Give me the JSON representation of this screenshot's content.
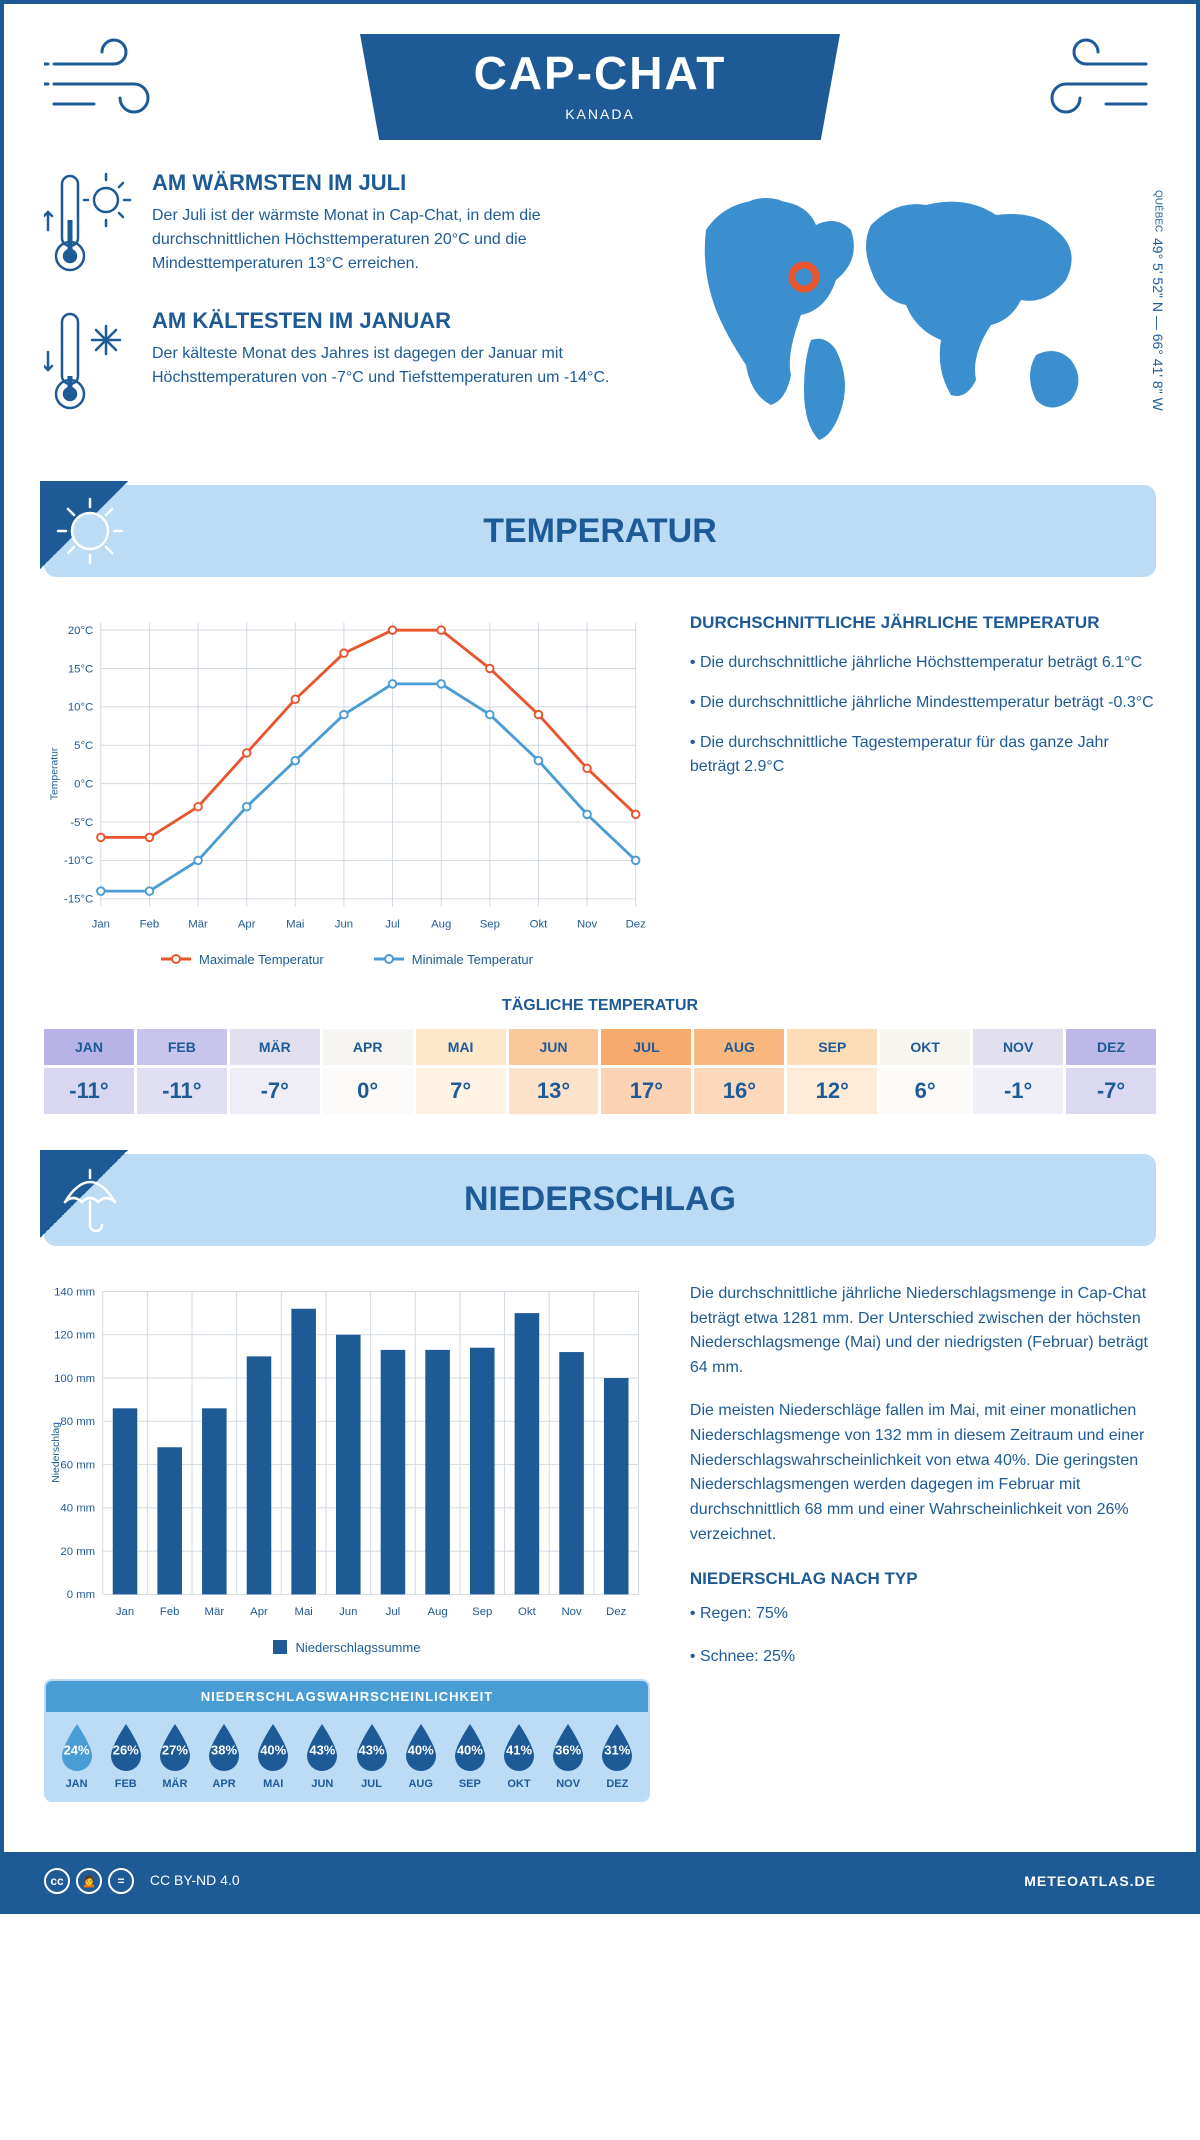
{
  "header": {
    "title": "CAP-CHAT",
    "subtitle": "KANADA"
  },
  "location": {
    "province": "QUÉBEC",
    "coords": "49° 5' 52\" N — 66° 41' 8\" W",
    "marker": {
      "cx_pct": 29,
      "cy_pct": 38
    }
  },
  "facts": {
    "warm": {
      "title": "AM WÄRMSTEN IM JULI",
      "text": "Der Juli ist der wärmste Monat in Cap-Chat, in dem die durchschnittlichen Höchsttemperaturen 20°C und die Mindesttemperaturen 13°C erreichen."
    },
    "cold": {
      "title": "AM KÄLTESTEN IM JANUAR",
      "text": "Der kälteste Monat des Jahres ist dagegen der Januar mit Höchsttemperaturen von -7°C und Tiefsttemperaturen um -14°C."
    }
  },
  "section_temperature": "TEMPERATUR",
  "section_precipitation": "NIEDERSCHLAG",
  "temperature_chart": {
    "type": "line",
    "months": [
      "Jan",
      "Feb",
      "Mär",
      "Apr",
      "Mai",
      "Jun",
      "Jul",
      "Aug",
      "Sep",
      "Okt",
      "Nov",
      "Dez"
    ],
    "series_max": {
      "label": "Maximale Temperatur",
      "color": "#e8542c",
      "values": [
        -7,
        -7,
        -3,
        4,
        11,
        17,
        20,
        20,
        15,
        9,
        2,
        -4
      ]
    },
    "series_min": {
      "label": "Minimale Temperatur",
      "color": "#4a9cd4",
      "values": [
        -14,
        -14,
        -10,
        -3,
        3,
        9,
        13,
        13,
        9,
        3,
        -4,
        -10
      ]
    },
    "y_ticks": [
      -15,
      -10,
      -5,
      0,
      5,
      10,
      15,
      20
    ],
    "ylim": [
      -16,
      21
    ],
    "ylabel": "Temperatur",
    "line_width": 3,
    "marker_radius": 4,
    "grid_color": "#d0d8e0"
  },
  "temperature_text": {
    "title": "DURCHSCHNITTLICHE JÄHRLICHE TEMPERATUR",
    "lines": [
      "• Die durchschnittliche jährliche Höchsttemperatur beträgt 6.1°C",
      "• Die durchschnittliche jährliche Mindesttemperatur beträgt -0.3°C",
      "• Die durchschnittliche Tagestemperatur für das ganze Jahr beträgt 2.9°C"
    ]
  },
  "daily_temp": {
    "title": "TÄGLICHE TEMPERATUR",
    "months": [
      "JAN",
      "FEB",
      "MÄR",
      "APR",
      "MAI",
      "JUN",
      "JUL",
      "AUG",
      "SEP",
      "OKT",
      "NOV",
      "DEZ"
    ],
    "values": [
      "-11°",
      "-11°",
      "-7°",
      "0°",
      "7°",
      "13°",
      "17°",
      "16°",
      "12°",
      "6°",
      "-1°",
      "-7°"
    ],
    "head_colors": [
      "#b7b3e6",
      "#c8c5ec",
      "#e1deee",
      "#f6f5f2",
      "#fde8cc",
      "#fbc89c",
      "#f7a96e",
      "#f9b880",
      "#fcdcb6",
      "#f7f5f0",
      "#e2e0ef",
      "#bcb8e8"
    ],
    "val_colors": [
      "#d8d6f1",
      "#e1dff4",
      "#efeef6",
      "#fbfaf8",
      "#fef3e4",
      "#fde2cb",
      "#fbd2b3",
      "#fcd9bc",
      "#feecd8",
      "#fbfaf7",
      "#f0eff7",
      "#dbd9f2"
    ]
  },
  "precip_chart": {
    "type": "bar",
    "months": [
      "Jan",
      "Feb",
      "Mär",
      "Apr",
      "Mai",
      "Jun",
      "Jul",
      "Aug",
      "Sep",
      "Okt",
      "Nov",
      "Dez"
    ],
    "values": [
      86,
      68,
      86,
      110,
      132,
      120,
      113,
      113,
      114,
      130,
      112,
      100
    ],
    "y_ticks": [
      0,
      20,
      40,
      60,
      80,
      100,
      120,
      140
    ],
    "ylim": [
      0,
      140
    ],
    "ylabel": "Niederschlag",
    "legend": "Niederschlagssumme",
    "bar_color": "#1e5a96",
    "bar_width_ratio": 0.55,
    "grid_color": "#d0d8e0"
  },
  "precip_text": {
    "p1": "Die durchschnittliche jährliche Niederschlagsmenge in Cap-Chat beträgt etwa 1281 mm. Der Unterschied zwischen der höchsten Niederschlagsmenge (Mai) und der niedrigsten (Februar) beträgt 64 mm.",
    "p2": "Die meisten Niederschläge fallen im Mai, mit einer monatlichen Niederschlagsmenge von 132 mm in diesem Zeitraum und einer Niederschlagswahrscheinlichkeit von etwa 40%. Die geringsten Niederschlagsmengen werden dagegen im Februar mit durchschnittlich 68 mm und einer Wahrscheinlichkeit von 26% verzeichnet.",
    "type_title": "NIEDERSCHLAG NACH TYP",
    "type_lines": [
      "• Regen: 75%",
      "• Schnee: 25%"
    ]
  },
  "precip_prob": {
    "title": "NIEDERSCHLAGSWAHRSCHEINLICHKEIT",
    "months": [
      "JAN",
      "FEB",
      "MÄR",
      "APR",
      "MAI",
      "JUN",
      "JUL",
      "AUG",
      "SEP",
      "OKT",
      "NOV",
      "DEZ"
    ],
    "values": [
      "24%",
      "26%",
      "27%",
      "38%",
      "40%",
      "43%",
      "43%",
      "40%",
      "40%",
      "41%",
      "36%",
      "31%"
    ],
    "drop_color": "#1e5a96",
    "first_drop_color": "#4a9cd4"
  },
  "footer": {
    "license": "CC BY-ND 4.0",
    "site": "METEOATLAS.DE"
  },
  "colors": {
    "brand": "#1e5a96",
    "light": "#bcdcf5",
    "accent": "#4a9cd4"
  }
}
